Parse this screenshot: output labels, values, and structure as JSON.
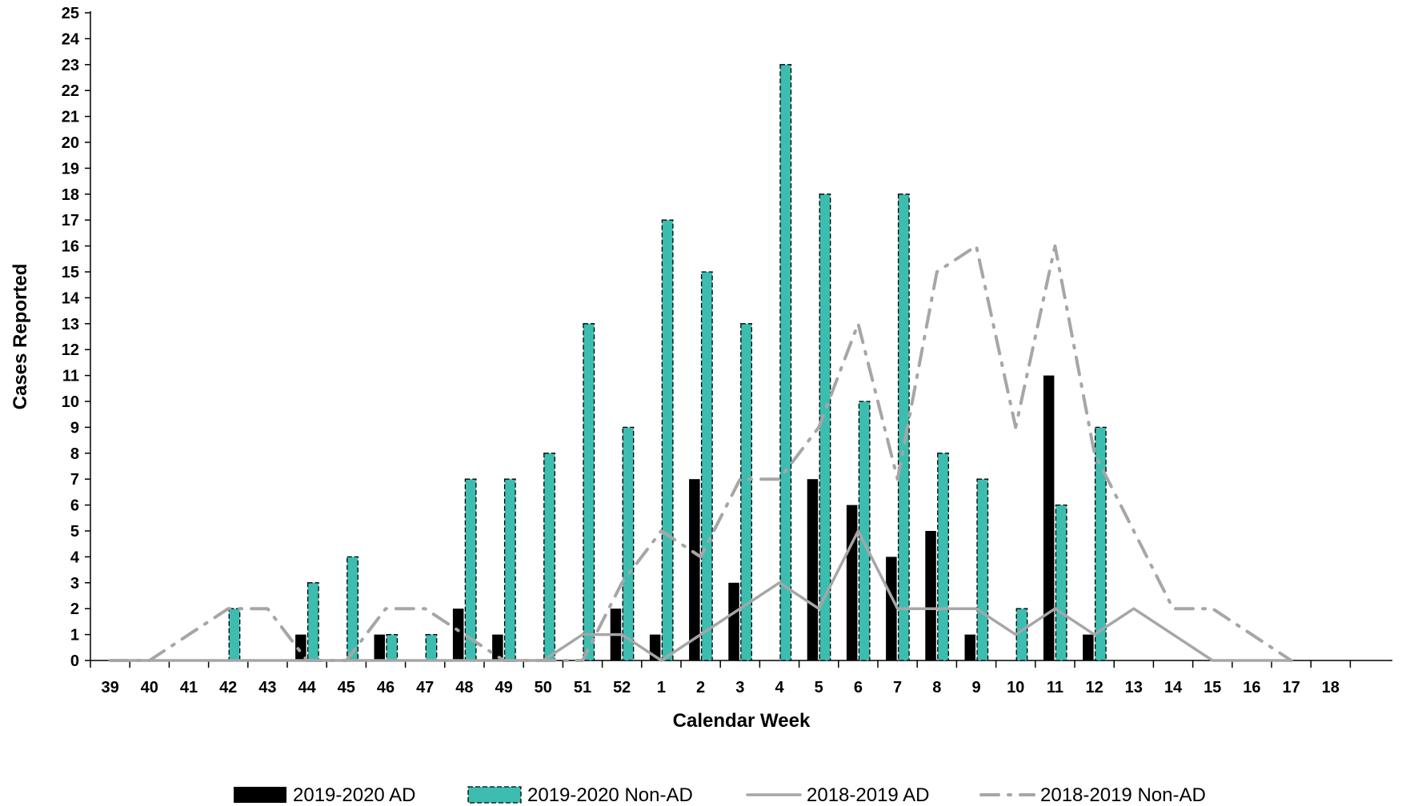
{
  "chart_data": {
    "type": "bar",
    "title": "",
    "xlabel": "Calendar Week",
    "ylabel": "Cases Reported",
    "ylim": [
      0,
      25
    ],
    "yticks": [
      "0",
      "1",
      "2",
      "3",
      "4",
      "5",
      "6",
      "7",
      "8",
      "9",
      "10",
      "11",
      "12",
      "13",
      "14",
      "15",
      "16",
      "17",
      "18",
      "19",
      "20",
      "21",
      "22",
      "23",
      "24",
      "25"
    ],
    "categories": [
      "39",
      "40",
      "41",
      "42",
      "43",
      "44",
      "45",
      "46",
      "47",
      "48",
      "49",
      "50",
      "51",
      "52",
      "1",
      "2",
      "3",
      "4",
      "5",
      "6",
      "7",
      "8",
      "9",
      "10",
      "11",
      "12",
      "13",
      "14",
      "15",
      "16",
      "17",
      "18"
    ],
    "grid": false,
    "legend_position": "bottom",
    "series": [
      {
        "name": "2019-2020 AD",
        "kind": "bar",
        "color": "#000000",
        "values": [
          0,
          0,
          0,
          0,
          0,
          1,
          0,
          1,
          0,
          2,
          1,
          0,
          0,
          2,
          1,
          7,
          3,
          0,
          7,
          6,
          4,
          5,
          1,
          0,
          11,
          1,
          null,
          null,
          null,
          null,
          null,
          null
        ]
      },
      {
        "name": "2019-2020 Non-AD",
        "kind": "bar",
        "color": "#3dbdb0",
        "values": [
          0,
          0,
          0,
          2,
          0,
          3,
          4,
          1,
          1,
          7,
          7,
          8,
          13,
          9,
          17,
          15,
          13,
          23,
          18,
          10,
          18,
          8,
          7,
          2,
          6,
          9,
          null,
          null,
          null,
          null,
          null,
          null
        ]
      },
      {
        "name": "2018-2019 AD",
        "kind": "line",
        "style": "solid",
        "color": "#a6a6a6",
        "values": [
          0,
          0,
          0,
          0,
          0,
          0,
          0,
          0,
          0,
          0,
          0,
          0,
          1,
          1,
          0,
          1,
          2,
          3,
          2,
          5,
          2,
          2,
          2,
          1,
          2,
          1,
          2,
          1,
          0,
          0,
          0,
          null
        ]
      },
      {
        "name": "2018-2019 Non-AD",
        "kind": "line",
        "style": "dash-dot",
        "color": "#a6a6a6",
        "values": [
          0,
          0,
          1,
          2,
          2,
          0,
          0,
          2,
          2,
          1,
          0,
          0,
          0,
          3,
          5,
          4,
          7,
          7,
          9,
          13,
          7,
          15,
          16,
          9,
          16,
          8,
          5,
          2,
          2,
          1,
          0,
          null
        ]
      }
    ]
  }
}
